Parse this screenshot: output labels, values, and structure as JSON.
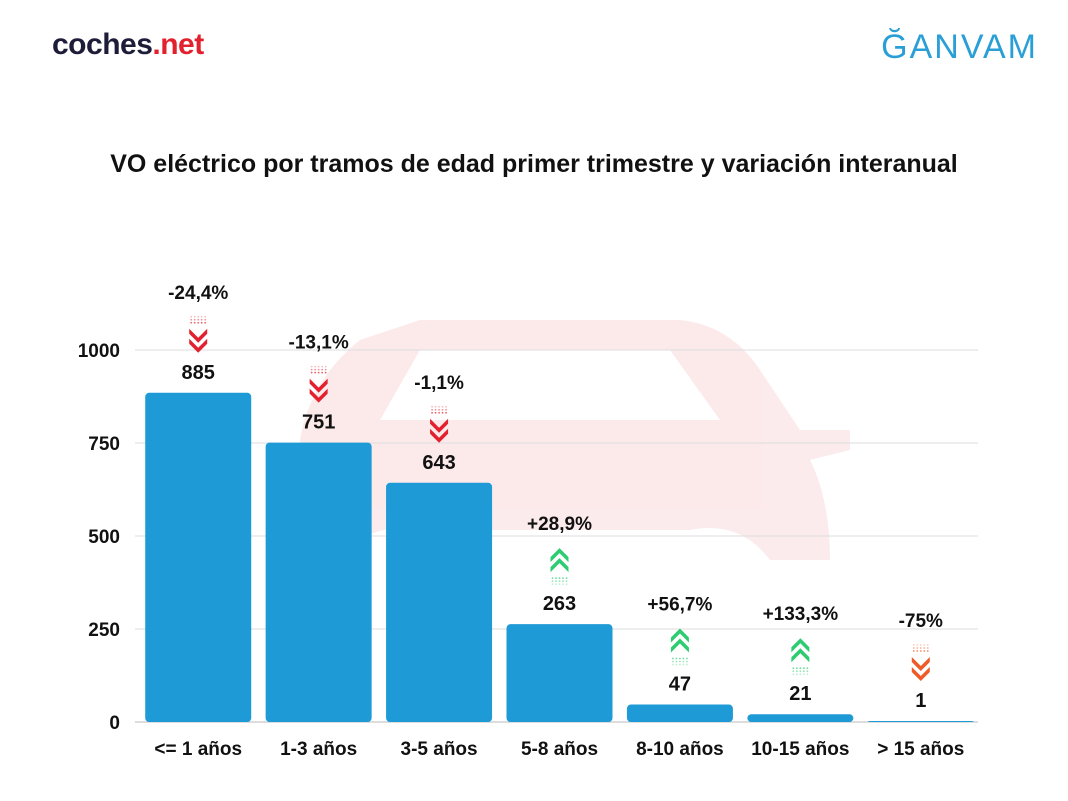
{
  "header": {
    "logo_left_main": "coches",
    "logo_left_accent": ".net",
    "logo_right": "ĞANVAM"
  },
  "chart_data": {
    "type": "bar",
    "title": "VO eléctrico por tramos de edad primer trimestre y variación interanual",
    "categories": [
      "<= 1 años",
      "1-3 años",
      "3-5 años",
      "5-8 años",
      "8-10 años",
      "10-15 años",
      "> 15 años"
    ],
    "values": [
      885,
      751,
      643,
      263,
      47,
      21,
      1
    ],
    "value_labels": [
      "885",
      "751",
      "643",
      "263",
      "47",
      "21",
      "1"
    ],
    "variation_labels": [
      "-24,4%",
      "-13,1%",
      "-1,1%",
      "+28,9%",
      "+56,7%",
      "+133,3%",
      "-75%"
    ],
    "variation_direction": [
      "down",
      "down",
      "down",
      "up",
      "up",
      "up",
      "down"
    ],
    "yticks": [
      0,
      250,
      500,
      750,
      1000
    ],
    "ylim": [
      0,
      1000
    ],
    "grid": true,
    "colors": {
      "bar": "#1e9ad6",
      "up_arrow": "#2ecc71",
      "down_arrow": "#e3202d",
      "down_arrow_alt": "#f05a28",
      "grid": "#dddddd",
      "watermark": "#e3202d"
    }
  }
}
